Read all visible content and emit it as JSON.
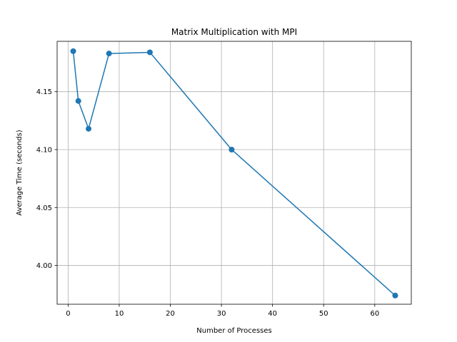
{
  "chart_data": {
    "type": "line",
    "title": "Matrix Multiplication with MPI",
    "xlabel": "Number of Processes",
    "ylabel": "Average Time (seconds)",
    "xlim": [
      -2.15,
      67.15
    ],
    "ylim": [
      3.9665,
      4.1935
    ],
    "xticks": [
      0,
      10,
      20,
      30,
      40,
      50,
      60
    ],
    "xtick_labels": [
      "0",
      "10",
      "20",
      "30",
      "40",
      "50",
      "60"
    ],
    "yticks": [
      4.0,
      4.05,
      4.1,
      4.15
    ],
    "ytick_labels": [
      "4.00",
      "4.05",
      "4.10",
      "4.15"
    ],
    "grid": true,
    "series": [
      {
        "x": [
          1,
          2,
          4,
          8,
          16,
          32,
          64
        ],
        "y": [
          4.185,
          4.142,
          4.118,
          4.183,
          4.184,
          4.1,
          3.974
        ],
        "color": "#1f77b4",
        "marker": "circle"
      }
    ]
  }
}
